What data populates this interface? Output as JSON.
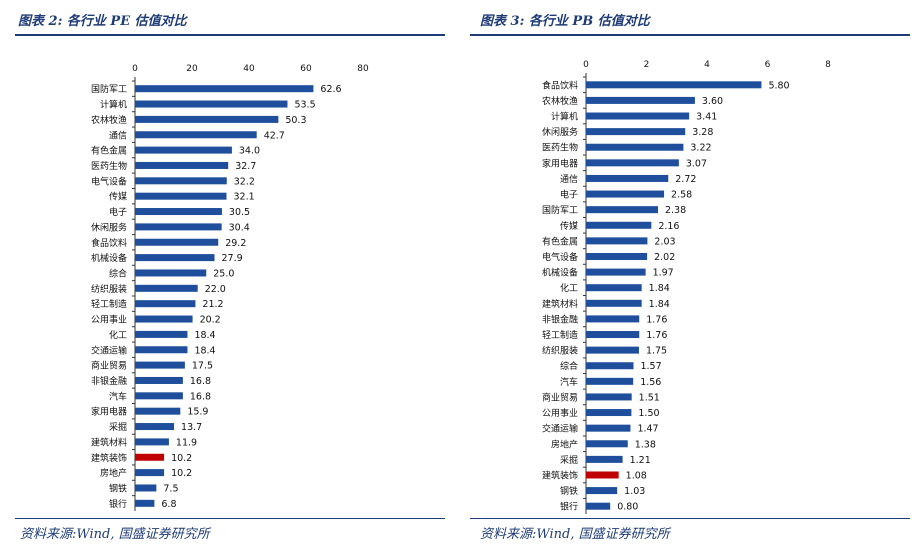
{
  "left": {
    "title": "图表 2:  各行业 PE 估值对比",
    "source": "资料来源:Wind, 国盛证券研究所"
  },
  "right": {
    "title": "图表 3:  各行业 PB 估值对比",
    "source": "资料来源:Wind, 国盛证券研究所"
  },
  "colors": {
    "bar": "#1f4e9c",
    "highlight": "#c00000",
    "rule": "#1f3c78"
  },
  "chart_data": [
    {
      "type": "bar",
      "orientation": "horizontal",
      "title": "图表 2:  各行业 PE 估值对比",
      "xlim": [
        0,
        80
      ],
      "ticks": [
        0,
        20,
        40,
        60,
        80
      ],
      "highlight": "建筑装饰",
      "categories": [
        "国防军工",
        "计算机",
        "农林牧渔",
        "通信",
        "有色金属",
        "医药生物",
        "电气设备",
        "传媒",
        "电子",
        "休闲服务",
        "食品饮料",
        "机械设备",
        "综合",
        "纺织服装",
        "轻工制造",
        "公用事业",
        "化工",
        "交通运输",
        "商业贸易",
        "非银金融",
        "汽车",
        "家用电器",
        "采掘",
        "建筑材料",
        "建筑装饰",
        "房地产",
        "钢铁",
        "银行"
      ],
      "values": [
        62.6,
        53.5,
        50.3,
        42.7,
        34.0,
        32.7,
        32.2,
        32.1,
        30.5,
        30.4,
        29.2,
        27.9,
        25.0,
        22.0,
        21.2,
        20.2,
        18.4,
        18.4,
        17.5,
        16.8,
        16.8,
        15.9,
        13.7,
        11.9,
        10.2,
        10.2,
        7.5,
        6.8
      ],
      "labels": [
        "62.6",
        "53.5",
        "50.3",
        "42.7",
        "34.0",
        "32.7",
        "32.2",
        "32.1",
        "30.5",
        "30.4",
        "29.2",
        "27.9",
        "25.0",
        "22.0",
        "21.2",
        "20.2",
        "18.4",
        "18.4",
        "17.5",
        "16.8",
        "16.8",
        "15.9",
        "13.7",
        "11.9",
        "10.2",
        "10.2",
        "7.5",
        "6.8"
      ]
    },
    {
      "type": "bar",
      "orientation": "horizontal",
      "title": "图表 3:  各行业 PB 估值对比",
      "xlim": [
        0,
        8
      ],
      "ticks": [
        0,
        2,
        4,
        6,
        8
      ],
      "highlight": "建筑装饰",
      "categories": [
        "食品饮料",
        "农林牧渔",
        "计算机",
        "休闲服务",
        "医药生物",
        "家用电器",
        "通信",
        "电子",
        "国防军工",
        "传媒",
        "有色金属",
        "电气设备",
        "机械设备",
        "化工",
        "建筑材料",
        "非银金融",
        "轻工制造",
        "纺织服装",
        "综合",
        "汽车",
        "商业贸易",
        "公用事业",
        "交通运输",
        "房地产",
        "采掘",
        "建筑装饰",
        "钢铁",
        "银行"
      ],
      "values": [
        5.8,
        3.6,
        3.41,
        3.28,
        3.22,
        3.07,
        2.72,
        2.58,
        2.38,
        2.16,
        2.03,
        2.02,
        1.97,
        1.84,
        1.84,
        1.76,
        1.76,
        1.75,
        1.57,
        1.56,
        1.51,
        1.5,
        1.47,
        1.38,
        1.21,
        1.08,
        1.03,
        0.8
      ],
      "labels": [
        "5.80",
        "3.60",
        "3.41",
        "3.28",
        "3.22",
        "3.07",
        "2.72",
        "2.58",
        "2.38",
        "2.16",
        "2.03",
        "2.02",
        "1.97",
        "1.84",
        "1.84",
        "1.76",
        "1.76",
        "1.75",
        "1.57",
        "1.56",
        "1.51",
        "1.50",
        "1.47",
        "1.38",
        "1.21",
        "1.08",
        "1.03",
        "0.80"
      ]
    }
  ]
}
